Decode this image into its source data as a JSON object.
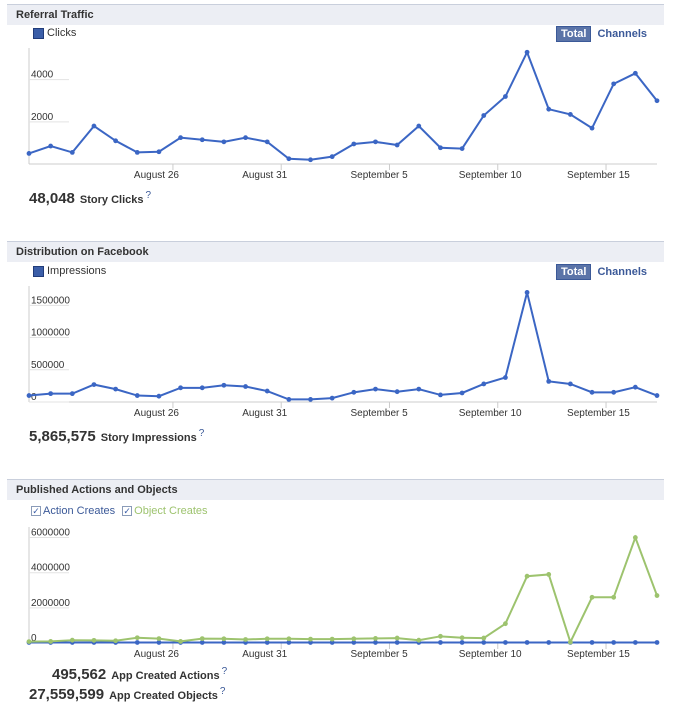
{
  "referral": {
    "title": "Referral Traffic",
    "legend": "Clicks",
    "toggle_total": "Total",
    "toggle_channels": "Channels",
    "stat_value": "48,048",
    "stat_label": "Story Clicks",
    "help": "?"
  },
  "distribution": {
    "title": "Distribution on Facebook",
    "legend": "Impressions",
    "toggle_total": "Total",
    "toggle_channels": "Channels",
    "stat_value": "5,865,575",
    "stat_label": "Story Impressions",
    "help": "?"
  },
  "published": {
    "title": "Published Actions and Objects",
    "legend_action": "Action Creates",
    "legend_object": "Object Creates",
    "stat1_value": "495,562",
    "stat1_label": "App Created Actions",
    "stat2_value": "27,559,599",
    "stat2_label": "App Created Objects",
    "help": "?"
  },
  "chart_data": [
    {
      "type": "line",
      "title": "Referral Traffic",
      "x_tick_labels": [
        "August 26",
        "August 31",
        "September 5",
        "September 10",
        "September 15"
      ],
      "y_tick_labels": [
        "2000",
        "4000"
      ],
      "ylim": [
        0,
        5500
      ],
      "color": "#3b66c4",
      "series": [
        {
          "name": "Clicks",
          "values": [
            500,
            850,
            550,
            1800,
            1100,
            550,
            580,
            1250,
            1150,
            1050,
            1250,
            1050,
            250,
            200,
            350,
            950,
            1050,
            900,
            1800,
            770,
            730,
            2300,
            3200,
            5300,
            2600,
            2350,
            1700,
            3800,
            4300,
            3000
          ]
        }
      ]
    },
    {
      "type": "line",
      "title": "Distribution on Facebook",
      "x_tick_labels": [
        "August 26",
        "August 31",
        "September 5",
        "September 10",
        "September 15"
      ],
      "y_tick_labels": [
        "0",
        "500000",
        "1000000",
        "1500000"
      ],
      "ylim": [
        0,
        1800000
      ],
      "color": "#3b66c4",
      "series": [
        {
          "name": "Impressions",
          "values": [
            100000,
            130000,
            130000,
            270000,
            200000,
            100000,
            90000,
            220000,
            220000,
            260000,
            240000,
            170000,
            40000,
            40000,
            60000,
            150000,
            200000,
            160000,
            200000,
            110000,
            140000,
            280000,
            380000,
            1700000,
            320000,
            280000,
            150000,
            150000,
            230000,
            100000
          ]
        }
      ]
    },
    {
      "type": "line",
      "title": "Published Actions and Objects",
      "x_tick_labels": [
        "August 26",
        "August 31",
        "September 5",
        "September 10",
        "September 15"
      ],
      "y_tick_labels": [
        "0",
        "2000000",
        "4000000",
        "6000000"
      ],
      "ylim": [
        0,
        6600000
      ],
      "series": [
        {
          "name": "Action Creates",
          "color": "#3b66c4",
          "values": [
            30000,
            30000,
            30000,
            30000,
            30000,
            30000,
            30000,
            30000,
            30000,
            30000,
            30000,
            30000,
            30000,
            30000,
            30000,
            30000,
            30000,
            30000,
            30000,
            30000,
            30000,
            30000,
            30000,
            30000,
            30000,
            30000,
            30000,
            30000,
            30000,
            30000
          ]
        },
        {
          "name": "Object Creates",
          "color": "#9dc36e",
          "values": [
            80000,
            90000,
            160000,
            150000,
            130000,
            300000,
            250000,
            90000,
            250000,
            240000,
            200000,
            240000,
            240000,
            220000,
            220000,
            240000,
            260000,
            280000,
            160000,
            380000,
            300000,
            280000,
            1100000,
            3800000,
            3900000,
            50000,
            2600000,
            2600000,
            6000000,
            2700000
          ]
        }
      ]
    }
  ]
}
